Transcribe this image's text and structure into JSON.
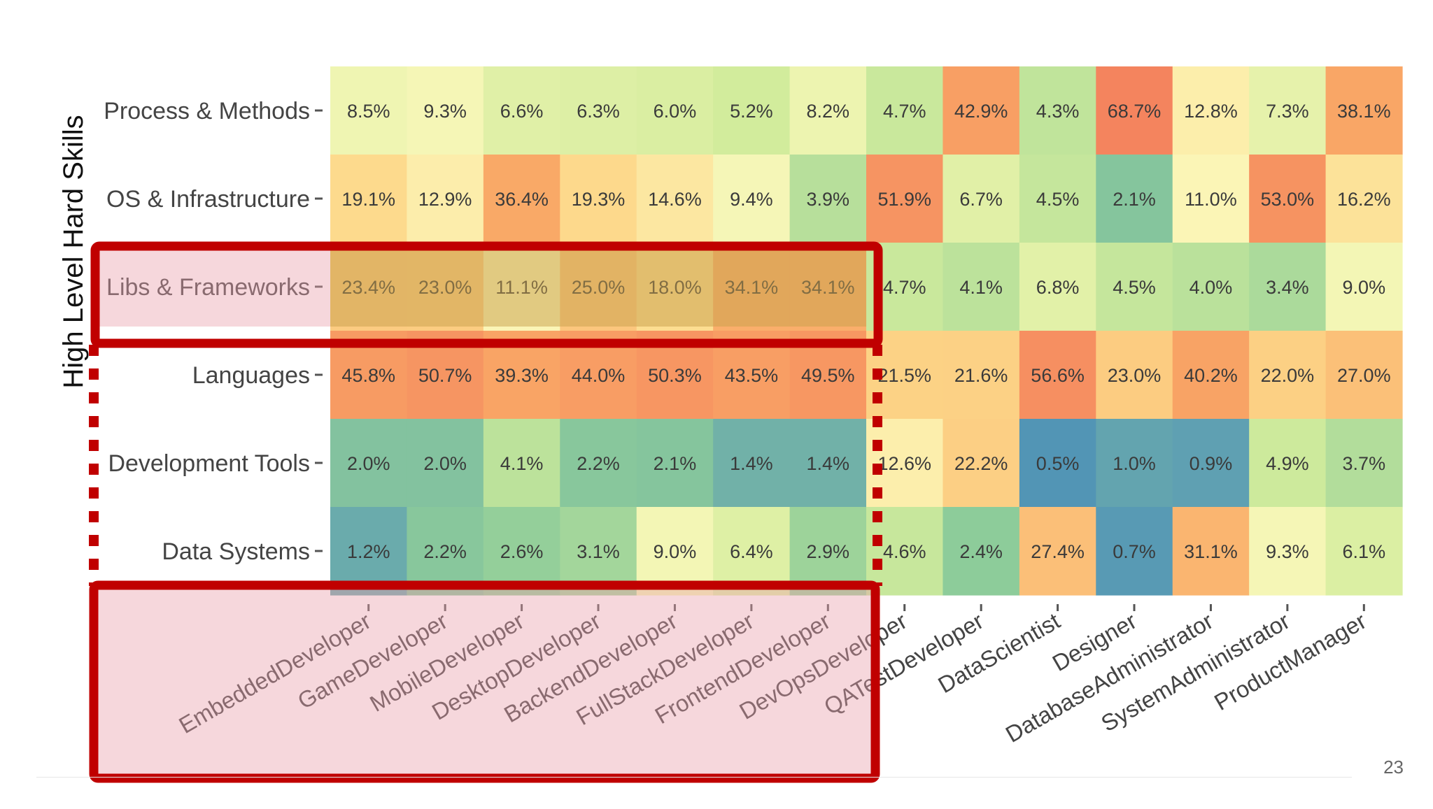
{
  "slide": {
    "page_number": "23"
  },
  "chart_data": {
    "type": "heatmap",
    "title": "",
    "ylabel": "High Level Hard Skills",
    "xlabel": "",
    "grid": false,
    "legend": "none",
    "rows": [
      "Process & Methods",
      "OS & Infrastructure",
      "Libs & Frameworks",
      "Languages",
      "Development Tools",
      "Data Systems"
    ],
    "columns": [
      "EmbeddedDeveloper",
      "GameDeveloper",
      "MobileDeveloper",
      "DesktopDeveloper",
      "BackendDeveloper",
      "FullStackDeveloper",
      "FrontendDeveloper",
      "DevOpsDeveloper",
      "QATestDeveloper",
      "DataScientist",
      "Designer",
      "DatabaseAdministrator",
      "SystemAdministrator",
      "ProductManager"
    ],
    "values": [
      [
        8.5,
        9.3,
        6.6,
        6.3,
        6.0,
        5.2,
        8.2,
        4.7,
        42.9,
        4.3,
        68.7,
        12.8,
        7.3,
        38.1
      ],
      [
        19.1,
        12.9,
        36.4,
        19.3,
        14.6,
        9.4,
        3.9,
        51.9,
        6.7,
        4.5,
        2.1,
        11.0,
        53.0,
        16.2
      ],
      [
        23.4,
        23.0,
        11.1,
        25.0,
        18.0,
        34.1,
        34.1,
        4.7,
        4.1,
        6.8,
        4.5,
        4.0,
        3.4,
        9.0
      ],
      [
        45.8,
        50.7,
        39.3,
        44.0,
        50.3,
        43.5,
        49.5,
        21.5,
        21.6,
        56.6,
        23.0,
        40.2,
        22.0,
        27.0
      ],
      [
        2.0,
        2.0,
        4.1,
        2.2,
        2.1,
        1.4,
        1.4,
        12.6,
        22.2,
        0.5,
        1.0,
        0.9,
        4.9,
        3.7
      ],
      [
        1.2,
        2.2,
        2.6,
        3.1,
        9.0,
        6.4,
        2.9,
        4.6,
        2.4,
        27.4,
        0.7,
        31.1,
        9.3,
        6.1
      ]
    ],
    "labels": [
      [
        "8.5%",
        "9.3%",
        "6.6%",
        "6.3%",
        "6.0%",
        "5.2%",
        "8.2%",
        "4.7%",
        "42.9%",
        "4.3%",
        "68.7%",
        "12.8%",
        "7.3%",
        "38.1%"
      ],
      [
        "19.1%",
        "12.9%",
        "36.4%",
        "19.3%",
        "14.6%",
        "9.4%",
        "3.9%",
        "51.9%",
        "6.7%",
        "4.5%",
        "2.1%",
        "11.0%",
        "53.0%",
        "16.2%"
      ],
      [
        "23.4%",
        "23.0%",
        "11.1%",
        "25.0%",
        "18.0%",
        "34.1%",
        "34.1%",
        "4.7%",
        "4.1%",
        "6.8%",
        "4.5%",
        "4.0%",
        "3.4%",
        "9.0%"
      ],
      [
        "45.8%",
        "50.7%",
        "39.3%",
        "44.0%",
        "50.3%",
        "43.5%",
        "49.5%",
        "21.5%",
        "21.6%",
        "56.6%",
        "23.0%",
        "40.2%",
        "22.0%",
        "27.0%"
      ],
      [
        "2.0%",
        "2.0%",
        "4.1%",
        "2.2%",
        "2.1%",
        "1.4%",
        "1.4%",
        "12.6%",
        "22.2%",
        "0.5%",
        "1.0%",
        "0.9%",
        "4.9%",
        "3.7%"
      ],
      [
        "1.2%",
        "2.2%",
        "2.6%",
        "3.1%",
        "9.0%",
        "6.4%",
        "2.9%",
        "4.6%",
        "2.4%",
        "27.4%",
        "0.7%",
        "31.1%",
        "9.3%",
        "6.1%"
      ]
    ],
    "colors": {
      "scale": [
        "#3f85b8",
        "#5c9db3",
        "#8ccb9a",
        "#d2ec9c",
        "#fbf8bb",
        "#fdd88a",
        "#f9a766",
        "#f4845e"
      ],
      "highlight_stroke": "#c00000",
      "highlight_fill": "#e9a0ac",
      "row_highlight_fill": "#c7a04c"
    },
    "highlights": [
      {
        "kind": "rectangle",
        "target": "row",
        "row": "Libs & Frameworks",
        "columns_from": "EmbeddedDeveloper",
        "columns_to": "FrontendDeveloper"
      },
      {
        "kind": "dotted",
        "target": "columns",
        "columns_from": "EmbeddedDeveloper",
        "columns_to": "FrontendDeveloper"
      },
      {
        "kind": "rectangle",
        "target": "x-axis-labels",
        "columns_from": "EmbeddedDeveloper",
        "columns_to": "FrontendDeveloper"
      }
    ]
  }
}
